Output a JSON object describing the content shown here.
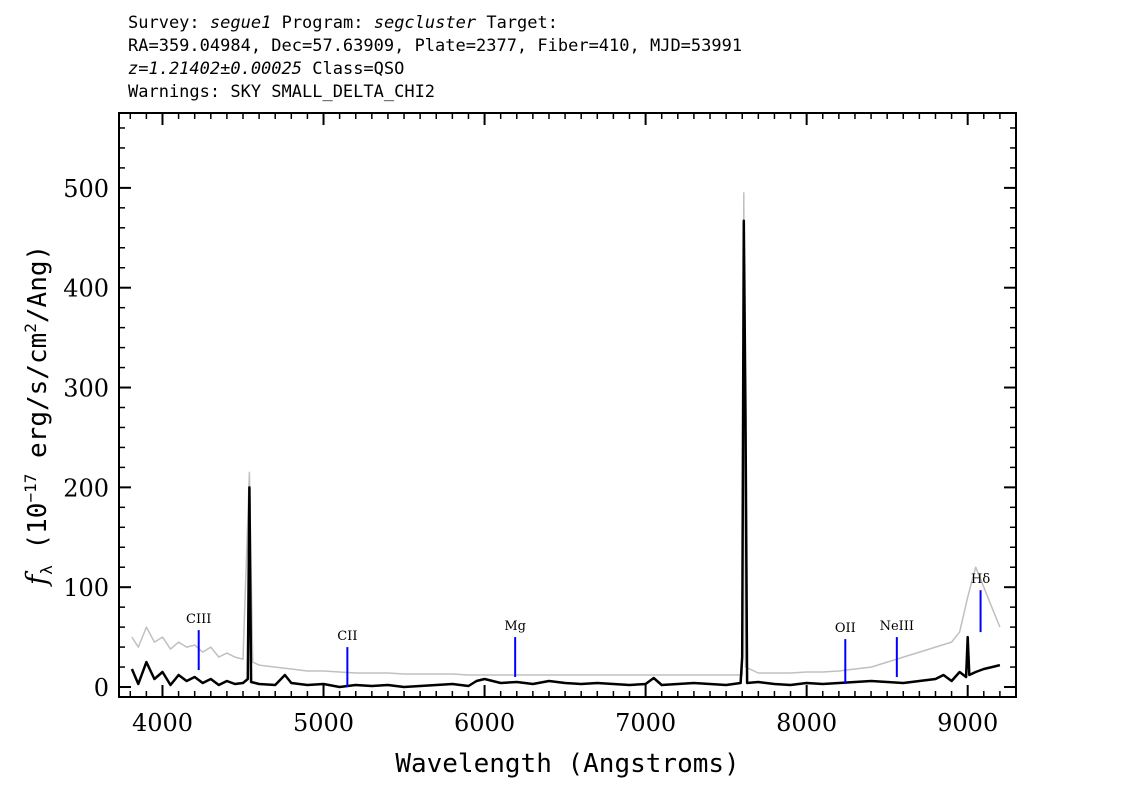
{
  "header": {
    "survey_label": "Survey:",
    "survey": "segue1",
    "program_label": "Program:",
    "program": "segcluster",
    "target_label": "Target:",
    "coords": "RA=359.04984, Dec=57.63909, Plate=2377, Fiber=410, MJD=53991",
    "redshift": "z=1.21402±0.00025",
    "class": "Class=QSO",
    "warnings": "Warnings: SKY SMALL_DELTA_CHI2"
  },
  "chart_data": {
    "type": "line",
    "xlabel": "Wavelength (Angstroms)",
    "ylabel_parts": [
      "f",
      "λ",
      " (10",
      "−17",
      " erg/s/cm",
      "2",
      "/Ang)"
    ],
    "xlim": [
      3730,
      9300
    ],
    "ylim": [
      -10,
      575
    ],
    "xticks": [
      4000,
      5000,
      6000,
      7000,
      8000,
      9000
    ],
    "xtick_labels": [
      "4000",
      "5000",
      "6000",
      "7000",
      "8000",
      "9000"
    ],
    "yticks": [
      0,
      100,
      200,
      300,
      400,
      500
    ],
    "ytick_labels": [
      "0",
      "100",
      "200",
      "300",
      "400",
      "500"
    ],
    "x_minor_step": 100,
    "y_minor_step": 20,
    "grid": false,
    "colors": {
      "flux": "#000000",
      "error": "#c0c0c0",
      "lines": "#0000ff"
    },
    "series": [
      {
        "role": "flux",
        "x": [
          3810,
          3850,
          3900,
          3950,
          4000,
          4050,
          4100,
          4150,
          4200,
          4250,
          4300,
          4350,
          4400,
          4450,
          4500,
          4530,
          4540,
          4550,
          4600,
          4700,
          4760,
          4800,
          4900,
          5000,
          5100,
          5200,
          5300,
          5400,
          5500,
          5600,
          5700,
          5800,
          5900,
          5950,
          6000,
          6100,
          6200,
          6300,
          6400,
          6500,
          6600,
          6700,
          6800,
          6900,
          7000,
          7050,
          7100,
          7200,
          7300,
          7400,
          7500,
          7590,
          7600,
          7610,
          7620,
          7630,
          7700,
          7800,
          7900,
          8000,
          8100,
          8200,
          8300,
          8400,
          8500,
          8600,
          8700,
          8800,
          8850,
          8900,
          8950,
          8990,
          9000,
          9010,
          9050,
          9100,
          9150,
          9200
        ],
        "y": [
          18,
          3,
          25,
          8,
          15,
          2,
          12,
          6,
          10,
          4,
          8,
          2,
          6,
          3,
          4,
          8,
          200,
          5,
          3,
          2,
          12,
          4,
          2,
          3,
          0,
          2,
          1,
          2,
          0,
          1,
          2,
          3,
          1,
          6,
          8,
          4,
          5,
          3,
          6,
          4,
          3,
          4,
          3,
          2,
          3,
          9,
          2,
          3,
          4,
          3,
          2,
          4,
          30,
          467,
          270,
          4,
          5,
          3,
          2,
          4,
          3,
          4,
          5,
          6,
          5,
          4,
          6,
          8,
          12,
          6,
          15,
          10,
          50,
          12,
          15,
          18,
          20,
          22
        ]
      },
      {
        "role": "error",
        "x": [
          3810,
          3850,
          3900,
          3950,
          4000,
          4050,
          4100,
          4150,
          4200,
          4250,
          4300,
          4350,
          4400,
          4450,
          4500,
          4540,
          4560,
          4600,
          4700,
          4800,
          4900,
          5000,
          5100,
          5200,
          5300,
          5400,
          5500,
          5600,
          5700,
          5800,
          5900,
          6000,
          6100,
          6200,
          6300,
          6400,
          6500,
          6600,
          6700,
          6800,
          6900,
          7000,
          7100,
          7200,
          7300,
          7400,
          7500,
          7600,
          7610,
          7620,
          7700,
          7800,
          7900,
          8000,
          8100,
          8200,
          8300,
          8400,
          8500,
          8600,
          8700,
          8800,
          8900,
          8950,
          9000,
          9050,
          9100,
          9150,
          9200
        ],
        "y": [
          50,
          40,
          60,
          45,
          50,
          38,
          45,
          40,
          42,
          35,
          40,
          30,
          34,
          30,
          28,
          215,
          25,
          22,
          20,
          18,
          16,
          16,
          15,
          14,
          14,
          14,
          13,
          13,
          13,
          13,
          12,
          12,
          12,
          12,
          12,
          12,
          12,
          12,
          12,
          12,
          12,
          12,
          12,
          12,
          12,
          12,
          12,
          12,
          495,
          20,
          14,
          14,
          14,
          15,
          15,
          16,
          18,
          20,
          25,
          30,
          35,
          40,
          45,
          55,
          90,
          120,
          100,
          80,
          60
        ]
      }
    ],
    "emission_lines": [
      {
        "name": "CIII",
        "x": 4225,
        "y_bottom": 17,
        "y_top": 57
      },
      {
        "name": "CII",
        "x": 5148,
        "y_bottom": 0,
        "y_top": 40
      },
      {
        "name": "Mg",
        "x": 6190,
        "y_bottom": 10,
        "y_top": 50
      },
      {
        "name": "OII",
        "x": 8240,
        "y_bottom": 3,
        "y_top": 48
      },
      {
        "name": "NeIII",
        "x": 8560,
        "y_bottom": 10,
        "y_top": 50
      },
      {
        "name": "Hδ",
        "x": 9080,
        "y_bottom": 55,
        "y_top": 97
      }
    ]
  }
}
